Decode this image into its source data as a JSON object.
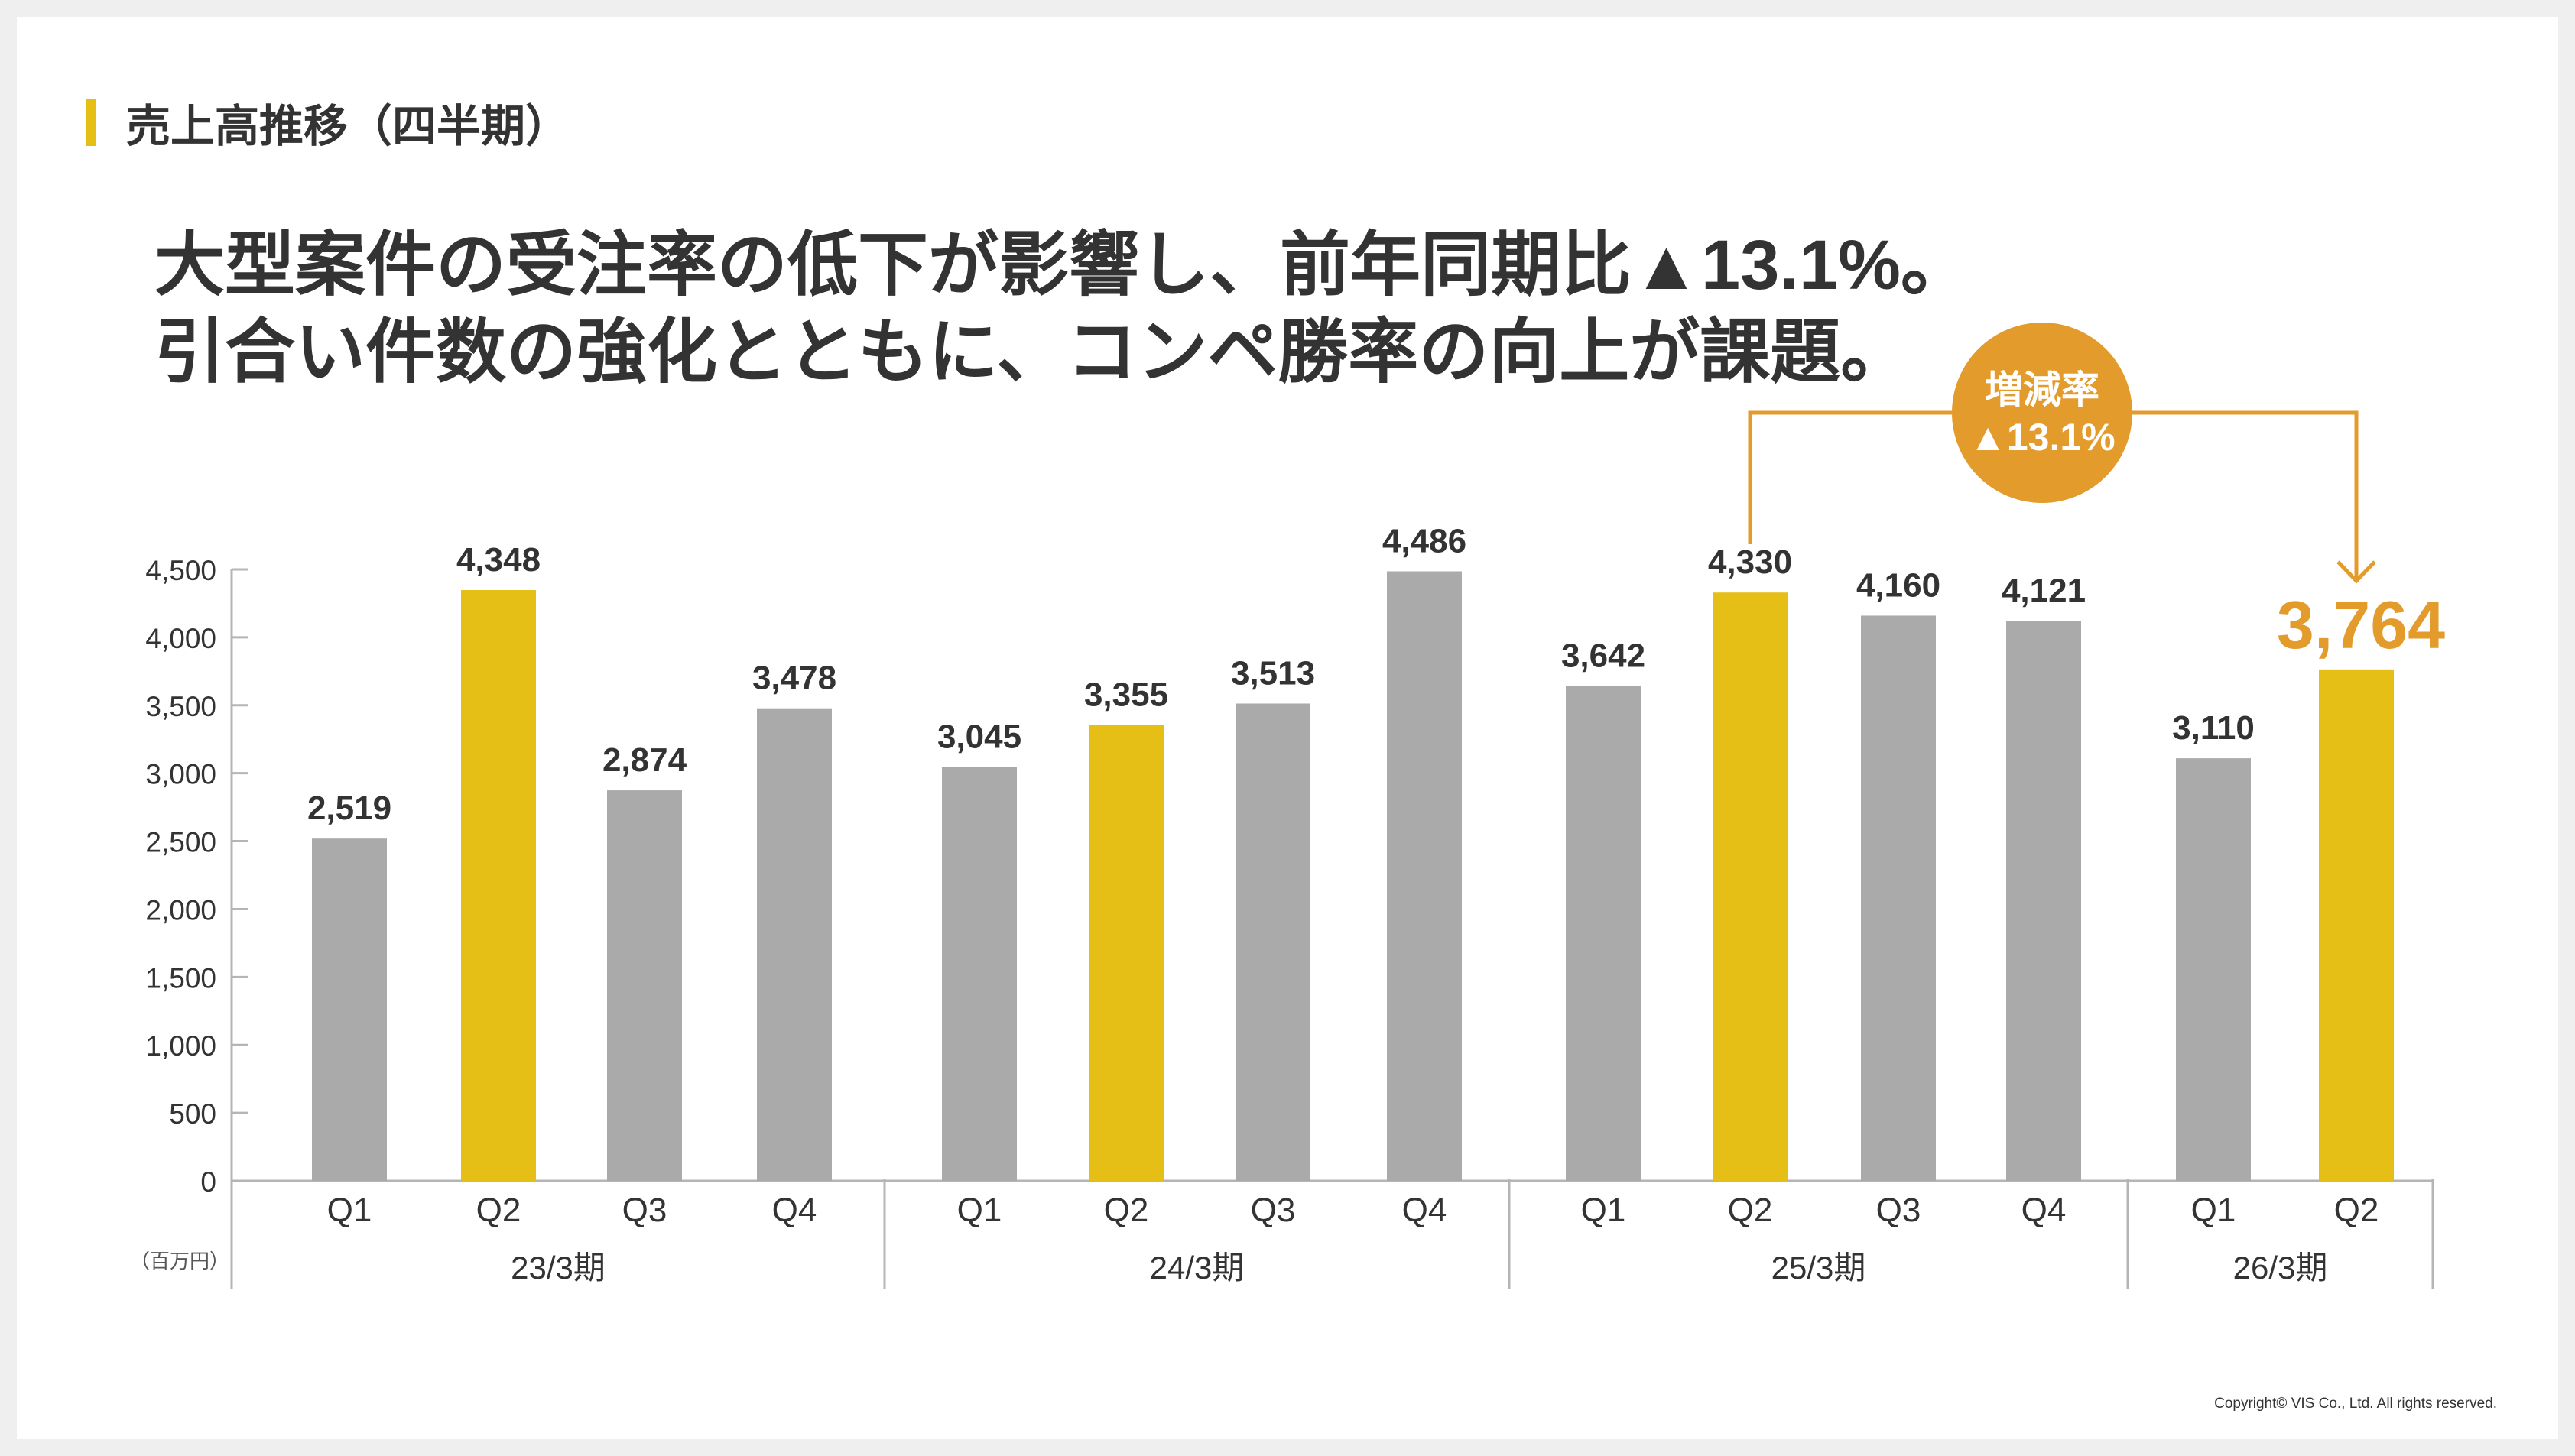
{
  "section_title": "売上高推移（四半期）",
  "headline": {
    "line1": "大型案件の受注率の低下が影響し、前年同期比▲13.1%。",
    "line2": "引合い件数の強化とともに、コンペ勝率の向上が課題。"
  },
  "copyright": "Copyright© VIS Co., Ltd. All rights reserved.",
  "colors": {
    "gray_bar": "#aaaaaa",
    "yellow_bar": "#e6bf16",
    "accent": "#e39b2b",
    "text": "#333333",
    "axis": "#b5b5b5"
  },
  "chart_data": {
    "type": "bar",
    "unit_label": "（百万円）",
    "ylim": [
      0,
      4500
    ],
    "yticks": [
      {
        "value": 0,
        "label": "0"
      },
      {
        "value": 500,
        "label": "500"
      },
      {
        "value": 1000,
        "label": "1,000"
      },
      {
        "value": 1500,
        "label": "1,500"
      },
      {
        "value": 2000,
        "label": "2,000"
      },
      {
        "value": 2500,
        "label": "2,500"
      },
      {
        "value": 3000,
        "label": "3,000"
      },
      {
        "value": 3500,
        "label": "3,500"
      },
      {
        "value": 4000,
        "label": "4,000"
      },
      {
        "value": 4500,
        "label": "4,500"
      }
    ],
    "groups": [
      {
        "label": "23/3期",
        "bars": [
          {
            "quarter": "Q1",
            "value": 2519,
            "label": "2,519",
            "highlight": false
          },
          {
            "quarter": "Q2",
            "value": 4348,
            "label": "4,348",
            "highlight": true
          },
          {
            "quarter": "Q3",
            "value": 2874,
            "label": "2,874",
            "highlight": false
          },
          {
            "quarter": "Q4",
            "value": 3478,
            "label": "3,478",
            "highlight": false
          }
        ]
      },
      {
        "label": "24/3期",
        "bars": [
          {
            "quarter": "Q1",
            "value": 3045,
            "label": "3,045",
            "highlight": false
          },
          {
            "quarter": "Q2",
            "value": 3355,
            "label": "3,355",
            "highlight": true
          },
          {
            "quarter": "Q3",
            "value": 3513,
            "label": "3,513",
            "highlight": false
          },
          {
            "quarter": "Q4",
            "value": 4486,
            "label": "4,486",
            "highlight": false
          }
        ]
      },
      {
        "label": "25/3期",
        "bars": [
          {
            "quarter": "Q1",
            "value": 3642,
            "label": "3,642",
            "highlight": false
          },
          {
            "quarter": "Q2",
            "value": 4330,
            "label": "4,330",
            "highlight": true
          },
          {
            "quarter": "Q3",
            "value": 4160,
            "label": "4,160",
            "highlight": false
          },
          {
            "quarter": "Q4",
            "value": 4121,
            "label": "4,121",
            "highlight": false
          }
        ]
      },
      {
        "label": "26/3期",
        "bars": [
          {
            "quarter": "Q1",
            "value": 3110,
            "label": "3,110",
            "highlight": false
          },
          {
            "quarter": "Q2",
            "value": 3764,
            "label": "3,764",
            "highlight": true,
            "emphasis": true
          }
        ]
      }
    ],
    "annotation": {
      "title": "増減率",
      "value": "▲13.1%",
      "from": {
        "group": 2,
        "bar": 1
      },
      "to": {
        "group": 3,
        "bar": 1
      }
    }
  }
}
